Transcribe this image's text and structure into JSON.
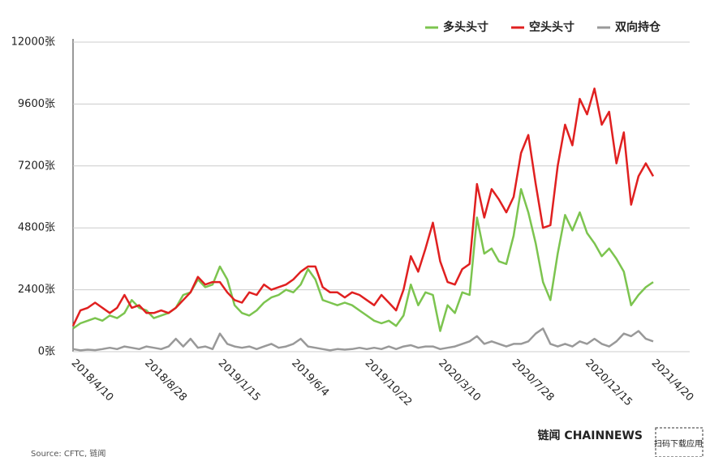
{
  "chart_data": {
    "type": "line",
    "categories": [
      "2018/4/10",
      null,
      null,
      null,
      null,
      null,
      null,
      null,
      null,
      null,
      "2018/8/28",
      null,
      null,
      null,
      null,
      null,
      null,
      null,
      null,
      null,
      "2019/1/15",
      null,
      null,
      null,
      null,
      null,
      null,
      null,
      null,
      null,
      "2019/6/4",
      null,
      null,
      null,
      null,
      null,
      null,
      null,
      null,
      null,
      "2019/10/22",
      null,
      null,
      null,
      null,
      null,
      null,
      null,
      null,
      null,
      "2020/3/10",
      null,
      null,
      null,
      null,
      null,
      null,
      null,
      null,
      null,
      "2020/7/28",
      null,
      null,
      null,
      null,
      null,
      null,
      null,
      null,
      null,
      "2020/12/15",
      null,
      null,
      null,
      null,
      null,
      null,
      null,
      null,
      "2021/4/20"
    ],
    "series": [
      {
        "name": "多头头寸",
        "color": "#7cc44f",
        "values": [
          900,
          1100,
          1200,
          1300,
          1200,
          1400,
          1300,
          1500,
          2000,
          1700,
          1600,
          1300,
          1400,
          1500,
          1700,
          2200,
          2300,
          2800,
          2500,
          2600,
          3300,
          2800,
          1800,
          1500,
          1400,
          1600,
          1900,
          2100,
          2200,
          2400,
          2300,
          2600,
          3200,
          2800,
          2000,
          1900,
          1800,
          1900,
          1800,
          1600,
          1400,
          1200,
          1100,
          1200,
          1000,
          1400,
          2600,
          1800,
          2300,
          2200,
          800,
          1800,
          1500,
          2300,
          2200,
          5200,
          3800,
          4000,
          3500,
          3400,
          4500,
          6300,
          5400,
          4200,
          2700,
          2000,
          3800,
          5300,
          4700,
          5400,
          4600,
          4200,
          3700,
          4000,
          3600,
          3100,
          1800,
          2200,
          2500,
          2700
        ]
      },
      {
        "name": "空头头寸",
        "color": "#e02020",
        "values": [
          1000,
          1600,
          1700,
          1900,
          1700,
          1500,
          1700,
          2200,
          1700,
          1800,
          1500,
          1500,
          1600,
          1500,
          1700,
          2000,
          2300,
          2900,
          2600,
          2700,
          2700,
          2300,
          2000,
          1900,
          2300,
          2200,
          2600,
          2400,
          2500,
          2600,
          2800,
          3100,
          3300,
          3300,
          2500,
          2300,
          2300,
          2100,
          2300,
          2200,
          2000,
          1800,
          2200,
          1900,
          1600,
          2400,
          3700,
          3100,
          4000,
          5000,
          3500,
          2700,
          2600,
          3200,
          3400,
          6500,
          5200,
          6300,
          5900,
          5400,
          6000,
          7700,
          8400,
          6500,
          4800,
          4900,
          7200,
          8800,
          8000,
          9800,
          9200,
          10200,
          8800,
          9300,
          7300,
          8500,
          5700,
          6800,
          7300,
          6800
        ]
      },
      {
        "name": "双向持仓",
        "color": "#999999",
        "values": [
          100,
          50,
          80,
          60,
          100,
          150,
          100,
          200,
          150,
          100,
          200,
          150,
          100,
          200,
          500,
          200,
          500,
          150,
          200,
          100,
          700,
          300,
          200,
          150,
          200,
          100,
          200,
          300,
          150,
          200,
          300,
          500,
          200,
          150,
          100,
          50,
          100,
          80,
          100,
          150,
          100,
          150,
          100,
          200,
          100,
          200,
          250,
          150,
          200,
          200,
          100,
          150,
          200,
          300,
          400,
          600,
          300,
          400,
          300,
          200,
          300,
          300,
          400,
          700,
          900,
          300,
          200,
          300,
          200,
          400,
          300,
          500,
          300,
          200,
          400,
          700,
          600,
          800,
          500,
          400
        ]
      }
    ],
    "ylim": [
      0,
      12000
    ],
    "yticks": [
      {
        "value": 0,
        "label": "0张"
      },
      {
        "value": 2400,
        "label": "2400张"
      },
      {
        "value": 4800,
        "label": "4800张"
      },
      {
        "value": 7200,
        "label": "7200张"
      },
      {
        "value": 9600,
        "label": "9600张"
      },
      {
        "value": 12000,
        "label": "12000张"
      }
    ],
    "grid": true,
    "legend": "top-right",
    "source": "Source: CFTC, 链闻",
    "brand": "链闻 CHAINNEWS",
    "brand_sub": "扫码下载应用"
  }
}
